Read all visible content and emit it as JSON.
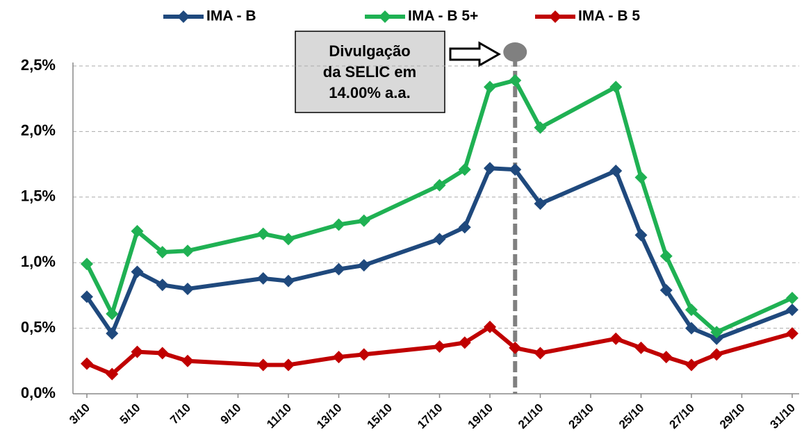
{
  "chart_data": {
    "type": "line",
    "x": [
      3,
      4,
      5,
      6,
      7,
      10,
      11,
      13,
      14,
      17,
      18,
      19,
      20,
      21,
      24,
      25,
      26,
      27,
      28,
      31
    ],
    "xlim": [
      3,
      31
    ],
    "xticks": [
      {
        "value": 3,
        "label": "3/10"
      },
      {
        "value": 5,
        "label": "5/10"
      },
      {
        "value": 7,
        "label": "7/10"
      },
      {
        "value": 9,
        "label": "9/10"
      },
      {
        "value": 11,
        "label": "11/10"
      },
      {
        "value": 13,
        "label": "13/10"
      },
      {
        "value": 15,
        "label": "15/10"
      },
      {
        "value": 17,
        "label": "17/10"
      },
      {
        "value": 19,
        "label": "19/10"
      },
      {
        "value": 21,
        "label": "21/10"
      },
      {
        "value": 23,
        "label": "23/10"
      },
      {
        "value": 25,
        "label": "25/10"
      },
      {
        "value": 27,
        "label": "27/10"
      },
      {
        "value": 29,
        "label": "29/10"
      },
      {
        "value": 31,
        "label": "31/10"
      }
    ],
    "ylim": [
      0,
      2.5
    ],
    "yticks": [
      {
        "value": 0,
        "label": "0,0%"
      },
      {
        "value": 0.5,
        "label": "0,5%"
      },
      {
        "value": 1,
        "label": "1,0%"
      },
      {
        "value": 1.5,
        "label": "1,5%"
      },
      {
        "value": 2,
        "label": "2,0%"
      },
      {
        "value": 2.5,
        "label": "2,5%"
      }
    ],
    "grid": true,
    "legend": "top",
    "series": [
      {
        "name": "IMA - B",
        "color": "#1f497d",
        "values": [
          0.74,
          0.46,
          0.93,
          0.83,
          0.8,
          0.88,
          0.86,
          0.95,
          0.98,
          1.18,
          1.27,
          1.72,
          1.71,
          1.45,
          1.7,
          1.21,
          0.79,
          0.5,
          0.42,
          0.64
        ]
      },
      {
        "name": "IMA - B 5+",
        "color": "#1fb153",
        "values": [
          0.99,
          0.61,
          1.24,
          1.08,
          1.09,
          1.22,
          1.18,
          1.29,
          1.32,
          1.59,
          1.71,
          2.34,
          2.39,
          2.03,
          2.34,
          1.65,
          1.05,
          0.64,
          0.47,
          0.73
        ]
      },
      {
        "name": "IMA - B 5",
        "color": "#c00000",
        "values": [
          0.23,
          0.15,
          0.32,
          0.31,
          0.25,
          0.22,
          0.22,
          0.28,
          0.3,
          0.36,
          0.39,
          0.51,
          0.35,
          0.31,
          0.42,
          0.35,
          0.28,
          0.22,
          0.3,
          0.46
        ]
      }
    ],
    "annotation": {
      "x": 20,
      "lines": [
        "Divulgação",
        "da SELIC em",
        "14.00% a.a."
      ]
    }
  }
}
